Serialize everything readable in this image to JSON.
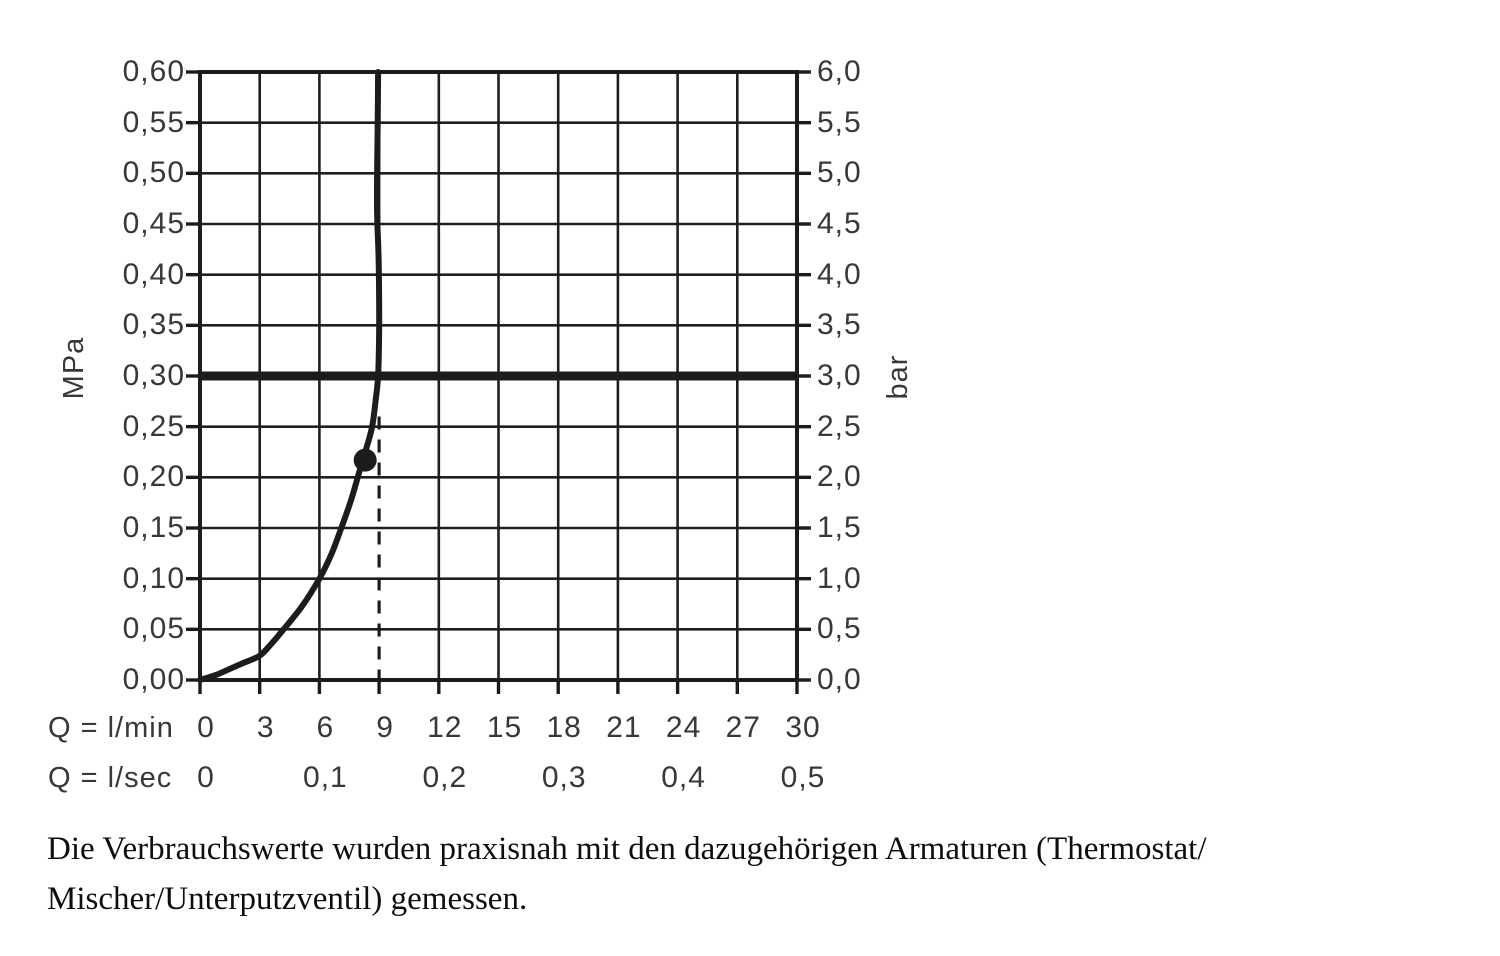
{
  "caption": {
    "line1": "Die Verbrauchswerte wurden praxisnah mit den dazugehörigen Armaturen (Thermostat/",
    "line2": "Mischer/Unterputzventil) gemessen."
  },
  "chart_data": {
    "type": "line",
    "grid": true,
    "x_axis": {
      "label_min": "Q = l/min",
      "label_sec": "Q = l/sec",
      "range_lmin": [
        0,
        30
      ],
      "lmin_ticks": [
        {
          "label": "0",
          "lmin": 0
        },
        {
          "label": "3",
          "lmin": 3
        },
        {
          "label": "6",
          "lmin": 6
        },
        {
          "label": "9",
          "lmin": 9
        },
        {
          "label": "12",
          "lmin": 12
        },
        {
          "label": "15",
          "lmin": 15
        },
        {
          "label": "18",
          "lmin": 18
        },
        {
          "label": "21",
          "lmin": 21
        },
        {
          "label": "24",
          "lmin": 24
        },
        {
          "label": "27",
          "lmin": 27
        },
        {
          "label": "30",
          "lmin": 30
        }
      ],
      "lsec_ticks": [
        {
          "label": "0",
          "lmin": 0
        },
        {
          "label": "0,1",
          "lmin": 6
        },
        {
          "label": "0,2",
          "lmin": 12
        },
        {
          "label": "0,3",
          "lmin": 18
        },
        {
          "label": "0,4",
          "lmin": 24
        },
        {
          "label": "0,5",
          "lmin": 30
        }
      ]
    },
    "y_axis_left": {
      "label": "MPa",
      "range": [
        0,
        0.6
      ],
      "ticks": [
        {
          "label": "0,60",
          "mpa": 0.6
        },
        {
          "label": "0,55",
          "mpa": 0.55
        },
        {
          "label": "0,50",
          "mpa": 0.5
        },
        {
          "label": "0,45",
          "mpa": 0.45
        },
        {
          "label": "0,40",
          "mpa": 0.4
        },
        {
          "label": "0,35",
          "mpa": 0.35
        },
        {
          "label": "0,30",
          "mpa": 0.3
        },
        {
          "label": "0,25",
          "mpa": 0.25
        },
        {
          "label": "0,20",
          "mpa": 0.2
        },
        {
          "label": "0,15",
          "mpa": 0.15
        },
        {
          "label": "0,10",
          "mpa": 0.1
        },
        {
          "label": "0,05",
          "mpa": 0.05
        },
        {
          "label": "0,00",
          "mpa": 0.0
        }
      ]
    },
    "y_axis_right": {
      "label": "bar",
      "range": [
        0,
        6.0
      ],
      "ticks": [
        {
          "label": "6,0",
          "bar": 6.0
        },
        {
          "label": "5,5",
          "bar": 5.5
        },
        {
          "label": "5,0",
          "bar": 5.0
        },
        {
          "label": "4,5",
          "bar": 4.5
        },
        {
          "label": "4,0",
          "bar": 4.0
        },
        {
          "label": "3,5",
          "bar": 3.5
        },
        {
          "label": "3,0",
          "bar": 3.0
        },
        {
          "label": "2,5",
          "bar": 2.5
        },
        {
          "label": "2,0",
          "bar": 2.0
        },
        {
          "label": "1,5",
          "bar": 1.5
        },
        {
          "label": "1,0",
          "bar": 1.0
        },
        {
          "label": "0,5",
          "bar": 0.5
        },
        {
          "label": "0,0",
          "bar": 0.0
        }
      ]
    },
    "curve": {
      "name": "flow-pressure-curve",
      "points_lmin_mpa": [
        [
          0,
          0
        ],
        [
          0.8,
          0.005
        ],
        [
          1.5,
          0.011
        ],
        [
          2.2,
          0.017
        ],
        [
          3,
          0.024
        ],
        [
          3.6,
          0.036
        ],
        [
          4.2,
          0.05
        ],
        [
          5.1,
          0.072
        ],
        [
          6,
          0.1
        ],
        [
          6.6,
          0.124
        ],
        [
          7.1,
          0.15
        ],
        [
          7.6,
          0.178
        ],
        [
          8.0,
          0.205
        ],
        [
          8.35,
          0.228
        ],
        [
          8.65,
          0.25
        ],
        [
          8.82,
          0.275
        ],
        [
          8.95,
          0.3
        ],
        [
          9.0,
          0.34
        ],
        [
          9.0,
          0.38
        ],
        [
          8.97,
          0.42
        ],
        [
          8.9,
          0.46
        ],
        [
          8.9,
          0.5
        ],
        [
          8.93,
          0.55
        ],
        [
          8.95,
          0.6
        ]
      ]
    },
    "marker_point": {
      "lmin": 8.3,
      "mpa": 0.217
    },
    "reference_pressure_line": {
      "mpa": 0.3,
      "bar": 3.0
    },
    "dashed_flow_line": {
      "lmin": 9,
      "mpa_from": 0.0,
      "mpa_to": 0.26
    },
    "colors": {
      "line": "#1c1c1c",
      "grid": "#1f1f1f",
      "axis_text": "#383838",
      "caption_text": "#0e0e0e",
      "background": "#ffffff"
    }
  }
}
